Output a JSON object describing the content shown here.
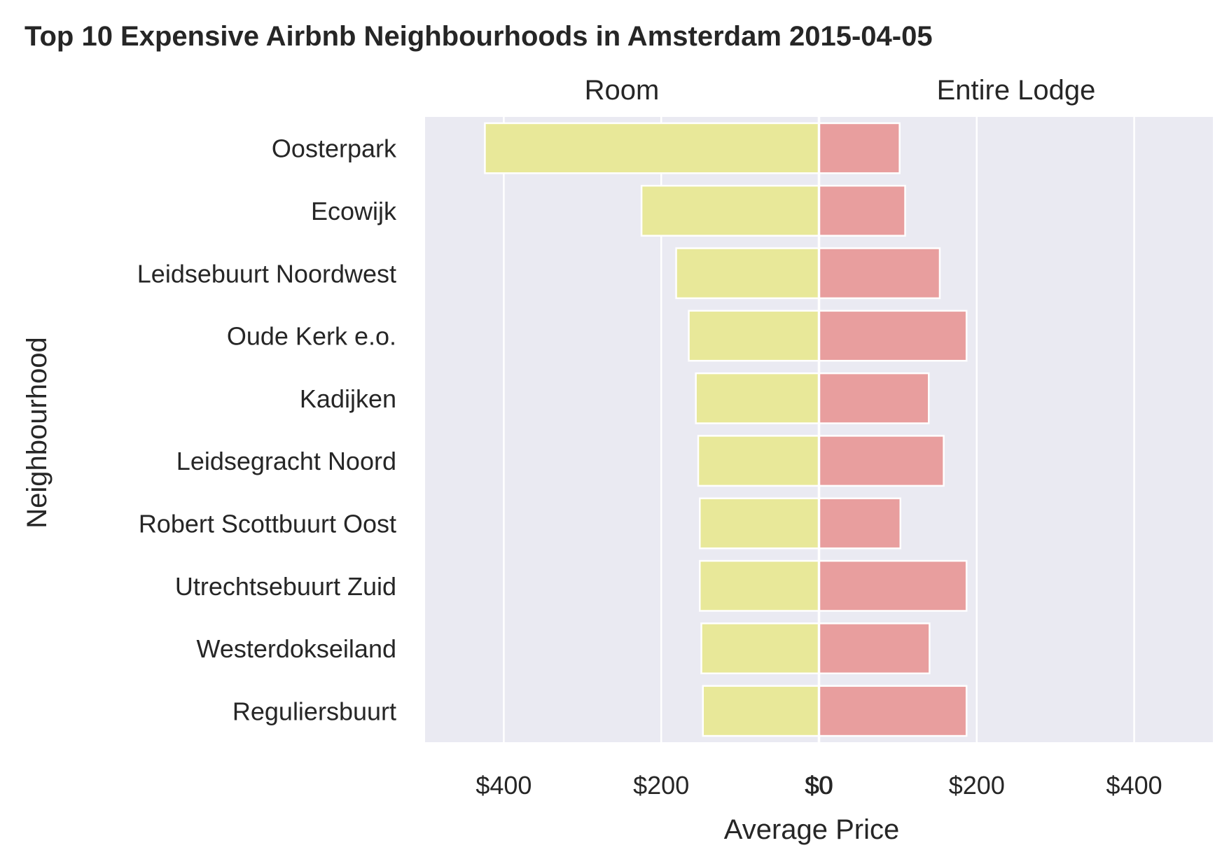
{
  "chart_data": {
    "type": "bar",
    "title": "Top 10 Expensive Airbnb Neighbourhoods in Amsterdam 2015-04-05",
    "ylabel": "Neighbourhood",
    "xlabel": "Average Price",
    "orientation": "horizontal",
    "grid": true,
    "categories": [
      "Oosterpark",
      "Ecowijk",
      "Leidsebuurt Noordwest",
      "Oude Kerk e.o.",
      "Kadijken",
      "Leidsegracht Noord",
      "Robert Scottbuurt Oost",
      "Utrechtsebuurt Zuid",
      "Westerdokseiland",
      "Reguliersbuurt"
    ],
    "panels": [
      {
        "title": "Room",
        "color": "#E8E899",
        "xlim": [
          500,
          0
        ],
        "ticks": [
          400,
          200,
          0
        ],
        "tick_labels": [
          "$400",
          "$200",
          "$0"
        ],
        "values": [
          424,
          225,
          181,
          165,
          156,
          153,
          151,
          151,
          149,
          147
        ]
      },
      {
        "title": "Entire Lodge",
        "color": "#E89E9E",
        "xlim": [
          0,
          500
        ],
        "ticks": [
          0,
          200,
          400
        ],
        "tick_labels": [
          "$0",
          "$200",
          "$400"
        ],
        "values": [
          102,
          109,
          153,
          187,
          139,
          158,
          103,
          187,
          140,
          187
        ]
      }
    ]
  }
}
